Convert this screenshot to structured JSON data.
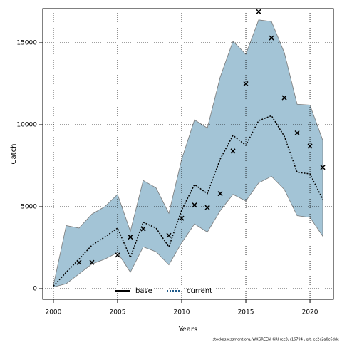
{
  "chart_data": {
    "type": "band-line",
    "x_label": "Years",
    "y_label": "Catch",
    "footer": "stockassessment.org, WKGREEN_GRI rec3, r16794 , git: ec2c2a0c6dde",
    "x": [
      2000,
      2001,
      2002,
      2003,
      2004,
      2005,
      2006,
      2007,
      2008,
      2009,
      2010,
      2011,
      2012,
      2013,
      2014,
      2015,
      2016,
      2017,
      2018,
      2019,
      2020,
      2021
    ],
    "band": {
      "color": "#a3c4d6",
      "edge": "#7a7a7a",
      "upper": [
        200,
        3850,
        3700,
        4550,
        5000,
        5750,
        3500,
        6600,
        6150,
        4600,
        7900,
        10300,
        9800,
        12900,
        15100,
        14300,
        16400,
        16300,
        14400,
        11250,
        11200,
        9050
      ],
      "lower": [
        100,
        300,
        900,
        1500,
        1800,
        2200,
        1000,
        2550,
        2250,
        1450,
        2800,
        3950,
        3450,
        4750,
        5750,
        5350,
        6450,
        6850,
        6050,
        4450,
        4350,
        3200
      ]
    },
    "series": [
      {
        "name": "current",
        "color": "#000000",
        "dash": true,
        "values": [
          150,
          1000,
          1800,
          2650,
          3150,
          3700,
          1900,
          4050,
          3700,
          2550,
          4800,
          6350,
          5800,
          7900,
          9350,
          8750,
          10250,
          10550,
          9300,
          7100,
          7000,
          5450
        ]
      },
      {
        "name": "observed",
        "color": "#000000",
        "marker": "x",
        "values": [
          null,
          null,
          1600,
          1600,
          null,
          2050,
          3150,
          3650,
          null,
          3250,
          4300,
          5100,
          4950,
          5800,
          8400,
          12500,
          16900,
          15300,
          11650,
          9500,
          8700,
          7400
        ]
      }
    ],
    "legend": [
      {
        "name": "base",
        "color": "#000000",
        "dash": false
      },
      {
        "name": "current",
        "color": "#1f5a8a",
        "dash": true
      }
    ],
    "xlim": [
      1999.17,
      2021.83
    ],
    "ylim": [
      -652,
      17087
    ],
    "xticks": [
      2000,
      2005,
      2010,
      2015,
      2020
    ],
    "yticks": [
      0,
      5000,
      10000,
      15000
    ],
    "grid": true
  }
}
